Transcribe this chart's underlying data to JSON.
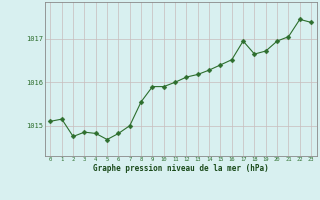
{
  "x": [
    0,
    1,
    2,
    3,
    4,
    5,
    6,
    7,
    8,
    9,
    10,
    11,
    12,
    13,
    14,
    15,
    16,
    17,
    18,
    19,
    20,
    21,
    22,
    23
  ],
  "y": [
    1015.1,
    1015.15,
    1014.75,
    1014.85,
    1014.82,
    1014.68,
    1014.82,
    1015.0,
    1015.55,
    1015.9,
    1015.9,
    1016.0,
    1016.12,
    1016.18,
    1016.28,
    1016.4,
    1016.52,
    1016.95,
    1016.65,
    1016.72,
    1016.95,
    1017.05,
    1017.45,
    1017.38
  ],
  "line_color": "#2d6e2d",
  "marker": "D",
  "marker_size": 2.5,
  "bg_color": "#d8f0f0",
  "grid_color": "#c8bcbc",
  "xlabel": "Graphe pression niveau de la mer (hPa)",
  "xlabel_color": "#1a4a1a",
  "ytick_labels": [
    "1015",
    "1016",
    "1017"
  ],
  "ytick_values": [
    1015,
    1016,
    1017
  ],
  "ylim": [
    1014.3,
    1017.85
  ],
  "xlim": [
    -0.5,
    23.5
  ],
  "figsize": [
    3.2,
    2.0
  ],
  "dpi": 100,
  "border_color": "#888888"
}
